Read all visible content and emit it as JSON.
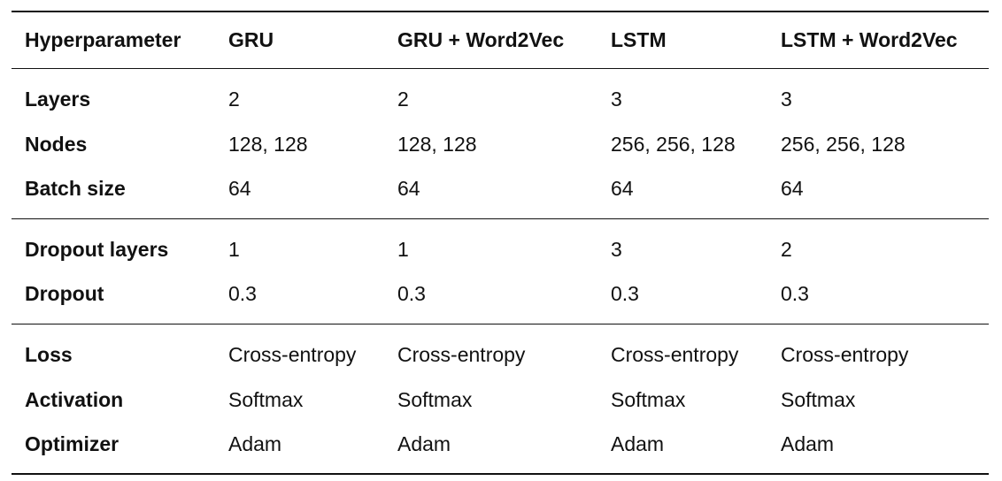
{
  "table": {
    "headers": [
      "Hyperparameter",
      "GRU",
      "GRU + Word2Vec",
      "LSTM",
      "LSTM + Word2Vec"
    ],
    "groups": [
      [
        [
          "Layers",
          "2",
          "2",
          "3",
          "3"
        ],
        [
          "Nodes",
          "128, 128",
          "128, 128",
          "256, 256, 128",
          "256, 256, 128"
        ],
        [
          "Batch size",
          "64",
          "64",
          "64",
          "64"
        ]
      ],
      [
        [
          "Dropout layers",
          "1",
          "1",
          "3",
          "2"
        ],
        [
          "Dropout",
          "0.3",
          "0.3",
          "0.3",
          "0.3"
        ]
      ],
      [
        [
          "Loss",
          "Cross-entropy",
          "Cross-entropy",
          "Cross-entropy",
          "Cross-entropy"
        ],
        [
          "Activation",
          "Softmax",
          "Softmax",
          "Softmax",
          "Softmax"
        ],
        [
          "Optimizer",
          "Adam",
          "Adam",
          "Adam",
          "Adam"
        ]
      ]
    ]
  }
}
